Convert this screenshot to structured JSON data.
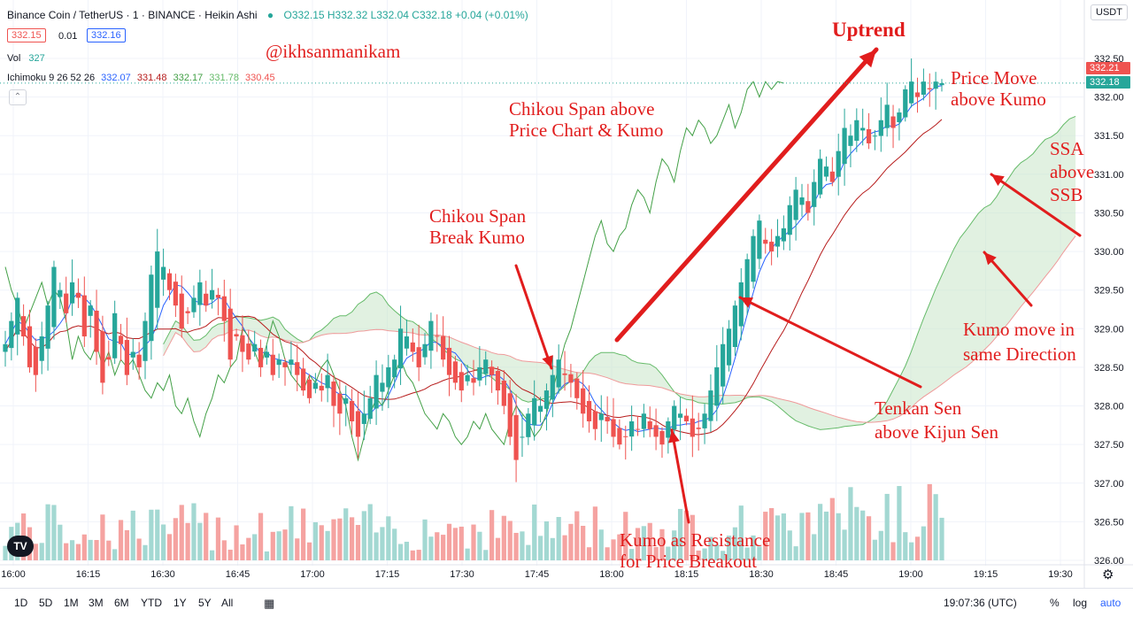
{
  "header": {
    "symbol": "Binance Coin / TetherUS · 1 · BINANCE · Heikin Ashi",
    "ohlc": "O332.15 H332.32 L332.04 C332.18 +0.04 (+0.01%)",
    "bid": "332.15",
    "spread": "0.01",
    "ask": "332.16",
    "vol_label": "Vol",
    "vol_value": "327",
    "ichimoku_label": "Ichimoku 9 26 52 26",
    "ichimoku_values": [
      "332.07",
      "331.48",
      "332.17",
      "331.78",
      "330.45"
    ],
    "ichimoku_colors": [
      "#2962ff",
      "#b71c1c",
      "#43a047",
      "#66bb6a",
      "#ef5350"
    ],
    "currency": "USDT"
  },
  "price_tags": {
    "upper": "332.21",
    "lower": "332.18"
  },
  "annotations": {
    "watermark": "@ikhsanmanikam",
    "uptrend": "Uptrend",
    "price_move_1": "Price Move",
    "price_move_2": "above Kumo",
    "chikou_above_1": "Chikou Span above",
    "chikou_above_2": "Price Chart & Kumo",
    "chikou_break_1": "Chikou Span",
    "chikou_break_2": "Break Kumo",
    "ssa_1": "SSA",
    "ssa_2": "above",
    "ssa_3": "SSB",
    "kumo_dir_1": "Kumo move in",
    "kumo_dir_2": "same Direction",
    "tenkan_1": "Tenkan Sen",
    "tenkan_2": "above Kijun Sen",
    "resist_1": "Kumo as Resistance",
    "resist_2": "for Price Breakout"
  },
  "toolbar": {
    "timeframes": [
      "1D",
      "5D",
      "1M",
      "3M",
      "6M",
      "YTD",
      "1Y",
      "5Y",
      "All"
    ],
    "clock": "19:07:36 (UTC)",
    "percent": "%",
    "log": "log",
    "auto": "auto"
  },
  "colors": {
    "up": "#26a69a",
    "down": "#ef5350",
    "tenkan": "#2962ff",
    "kijun": "#b71c1c",
    "chikou": "#43a047",
    "annotation": "#e11d1d"
  },
  "chart_data": {
    "type": "candlestick",
    "y_ticks": [
      "332.50",
      "332.00",
      "331.50",
      "331.00",
      "330.50",
      "330.00",
      "329.50",
      "329.00",
      "328.50",
      "328.00",
      "327.50",
      "327.00",
      "326.50",
      "326.00"
    ],
    "x_ticks": [
      "16:00",
      "16:15",
      "16:30",
      "16:45",
      "17:00",
      "17:15",
      "17:30",
      "17:45",
      "18:00",
      "18:15",
      "18:30",
      "18:45",
      "19:00",
      "19:15",
      "19:30"
    ],
    "ylim": [
      326.0,
      332.5
    ],
    "candles_close": [
      328.8,
      329.1,
      329.4,
      328.9,
      328.5,
      328.4,
      328.9,
      329.3,
      329.8,
      329.5,
      329.2,
      329.6,
      329.4,
      328.9,
      329.3,
      328.7,
      328.3,
      328.6,
      329.2,
      328.8,
      328.4,
      328.7,
      328.5,
      329.1,
      329.7,
      330.0,
      329.8,
      329.5,
      329.3,
      329.0,
      329.2,
      329.4,
      329.6,
      329.3,
      329.5,
      329.4,
      329.1,
      328.6,
      328.9,
      328.7,
      328.6,
      328.8,
      328.5,
      328.7,
      328.4,
      328.6,
      328.5,
      328.6,
      328.4,
      328.2,
      328.1,
      328.3,
      328.2,
      328.4,
      328.0,
      327.9,
      328.1,
      327.8,
      327.6,
      327.9,
      328.1,
      328.4,
      328.3,
      328.5,
      328.6,
      329.0,
      328.9,
      328.7,
      328.5,
      328.8,
      329.1,
      328.9,
      328.6,
      328.4,
      328.3,
      328.2,
      328.4,
      328.3,
      328.5,
      328.6,
      328.4,
      328.2,
      328.0,
      327.6,
      327.3,
      327.6,
      327.9,
      328.1,
      328.0,
      328.2,
      328.4,
      328.6,
      328.4,
      328.3,
      328.1,
      327.9,
      327.8,
      327.7,
      327.9,
      327.8,
      327.6,
      327.5,
      327.6,
      327.8,
      327.7,
      327.9,
      327.7,
      327.6,
      327.5,
      327.8,
      328.0,
      327.9,
      327.8,
      327.6,
      327.7,
      327.9,
      328.2,
      328.5,
      328.8,
      329.0,
      329.3,
      329.6,
      329.9,
      330.2,
      330.4,
      330.1,
      330.0,
      330.2,
      330.3,
      330.6,
      330.8,
      330.7,
      330.5,
      330.9,
      331.2,
      331.1,
      330.9,
      331.3,
      331.6,
      331.5,
      331.7,
      331.6,
      331.4,
      331.5,
      331.7,
      331.9,
      331.6,
      331.8,
      332.1,
      332.2,
      332.0,
      332.2,
      332.1,
      332.2,
      332.18
    ],
    "series": [
      {
        "name": "Tenkan Sen",
        "color": "#2962ff"
      },
      {
        "name": "Kijun Sen",
        "color": "#b71c1c"
      },
      {
        "name": "Chikou Span",
        "color": "#43a047"
      },
      {
        "name": "Senkou Span A",
        "color": "#66bb6a"
      },
      {
        "name": "Senkou Span B",
        "color": "#ef5350"
      }
    ]
  }
}
